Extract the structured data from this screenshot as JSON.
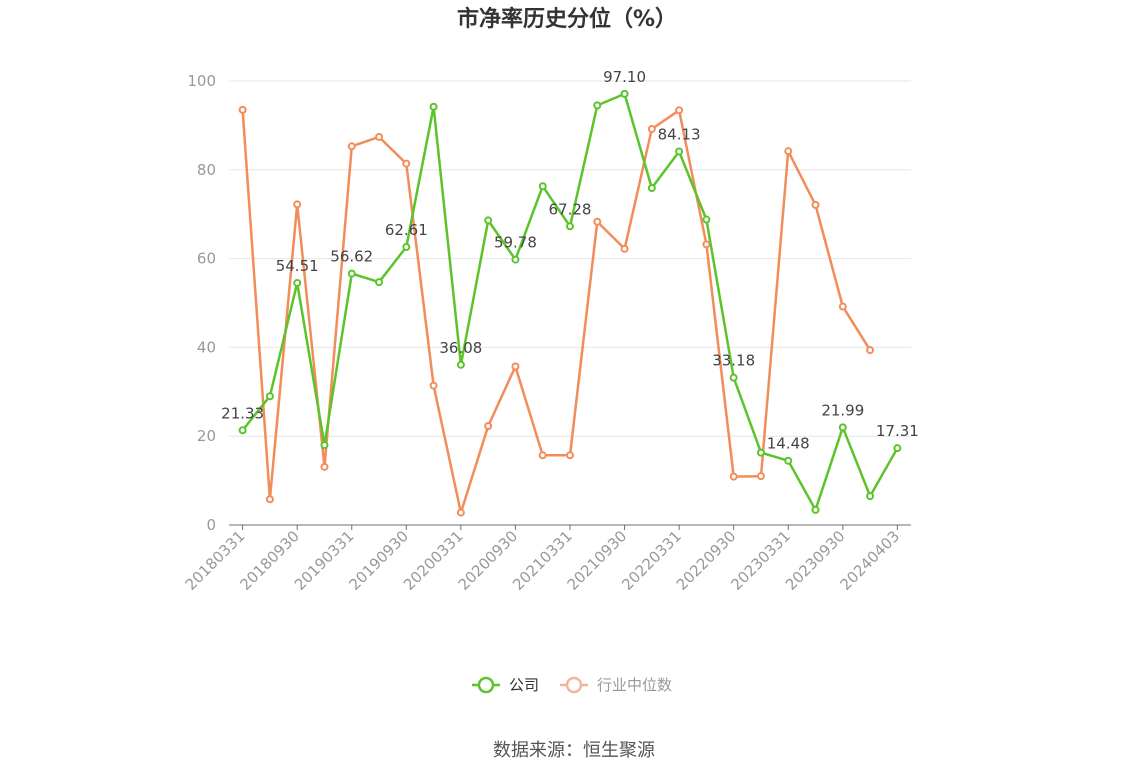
{
  "source_text": "数据来源：恒生聚源",
  "chart_data": {
    "type": "line",
    "title": "市净率历史分位（%）",
    "xlabel": "",
    "ylabel": "",
    "ylim": [
      0,
      100
    ],
    "yticks": [
      0,
      20,
      40,
      60,
      80,
      100
    ],
    "grid": true,
    "legend_position": "bottom",
    "x_tick_labels": [
      "20180331",
      "20180930",
      "20190331",
      "20190930",
      "20200331",
      "20200930",
      "20210331",
      "20210930",
      "20220331",
      "20220930",
      "20230331",
      "20230930",
      "20240403"
    ],
    "x": [
      "20180331",
      "20180630",
      "20180930",
      "20181231",
      "20190331",
      "20190630",
      "20190930",
      "20191231",
      "20200331",
      "20200630",
      "20200930",
      "20201231",
      "20210331",
      "20210630",
      "20210930",
      "20211231",
      "20220331",
      "20220630",
      "20220930",
      "20221231",
      "20230331",
      "20230630",
      "20230930",
      "20231231",
      "20240403"
    ],
    "series": [
      {
        "name": "公司",
        "color": "#5bc42a",
        "values": [
          21.33,
          29,
          54.51,
          18,
          56.62,
          54.7,
          62.61,
          94.2,
          36.08,
          68.6,
          59.78,
          76.3,
          67.28,
          94.5,
          97.1,
          75.9,
          84.13,
          68.8,
          33.18,
          16.3,
          14.48,
          3.4,
          21.99,
          6.5,
          17.31
        ],
        "labels": [
          "21.33",
          "",
          "54.51",
          "",
          "56.62",
          "",
          "62.61",
          "",
          "36.08",
          "",
          "59.78",
          "",
          "67.28",
          "",
          "97.10",
          "",
          "84.13",
          "",
          "33.18",
          "",
          "14.48",
          "",
          "21.99",
          "",
          "17.31"
        ]
      },
      {
        "name": "行业中位数",
        "color": "#f28c5a",
        "legend_color": "#f5b39a",
        "values": [
          93.5,
          5.8,
          72.2,
          13.1,
          85.3,
          87.4,
          81.4,
          31.4,
          2.8,
          22.3,
          35.7,
          15.7,
          15.7,
          68.3,
          62.2,
          89.2,
          93.4,
          63.2,
          10.9,
          11.0,
          84.2,
          72.1,
          49.2,
          39.4,
          null
        ]
      }
    ]
  }
}
